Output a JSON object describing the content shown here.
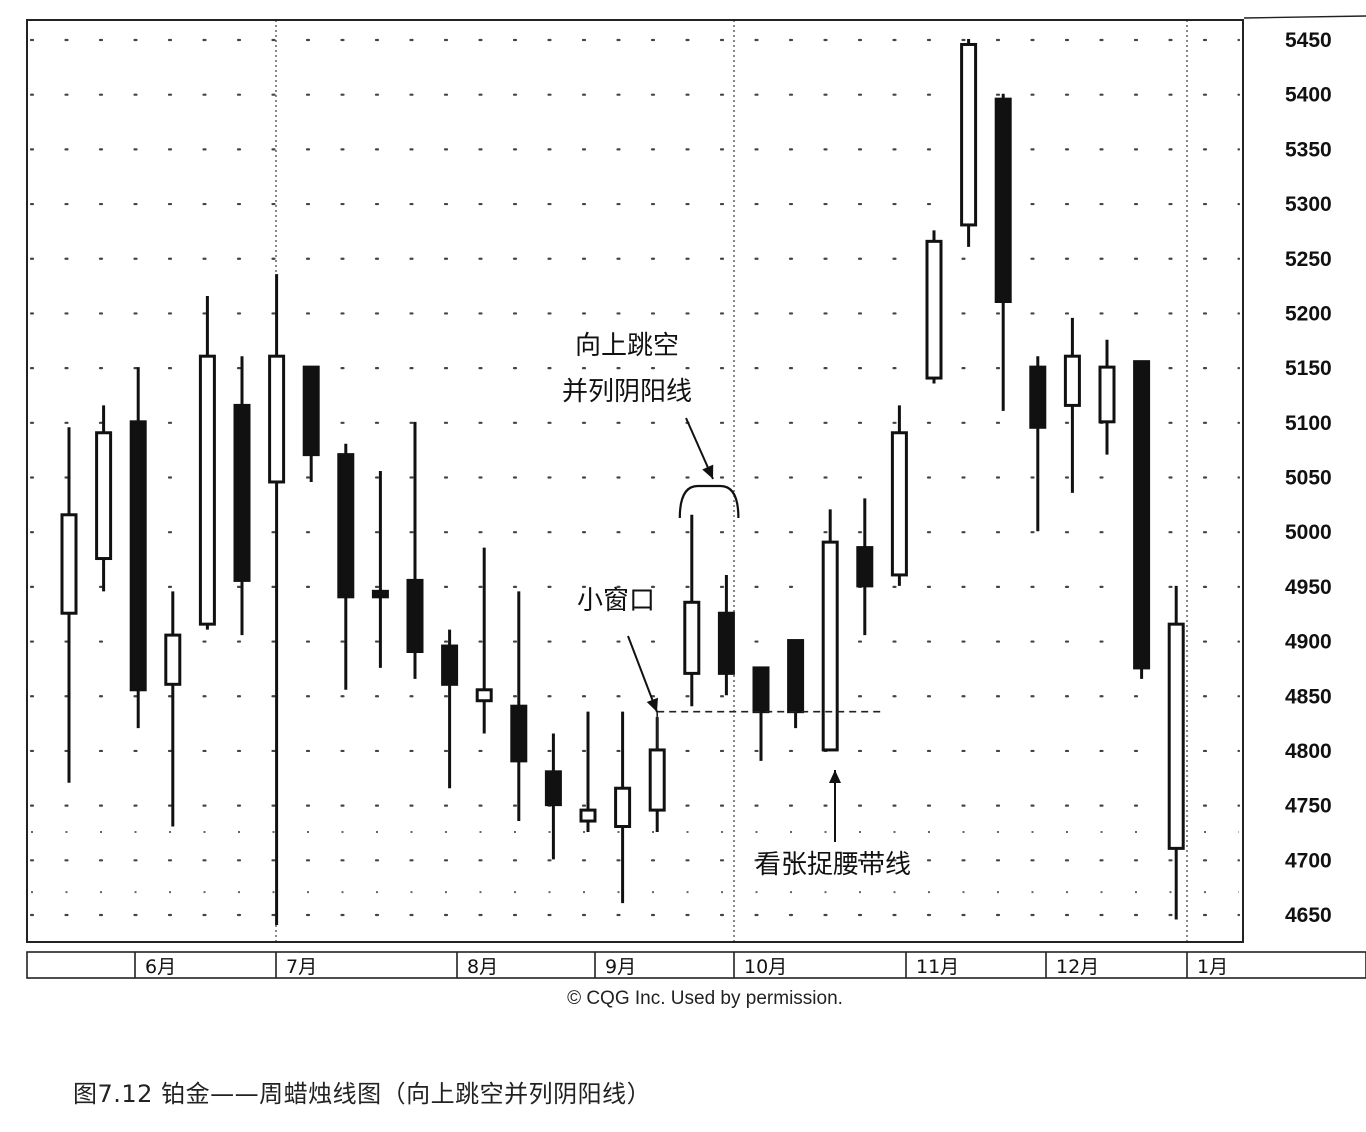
{
  "chart_data": {
    "type": "candlestick",
    "title": "",
    "price_scale": {
      "min": 4625,
      "max": 5475,
      "ticks": [
        4650,
        4700,
        4750,
        4800,
        4850,
        4900,
        4950,
        5000,
        5050,
        5100,
        5150,
        5200,
        5250,
        5300,
        5350,
        5400,
        5450
      ],
      "tick_labels": [
        "4650",
        "4700",
        "4750",
        "4800",
        "4850",
        "4900",
        "4950",
        "5000",
        "5050",
        "5100",
        "5150",
        "5200",
        "5250",
        "5300",
        "5350",
        "5400",
        "5450"
      ]
    },
    "month_labels": [
      "6月",
      "7月",
      "8月",
      "9月",
      "10月",
      "11月",
      "12月",
      "1月"
    ],
    "month_start_index": [
      2.0,
      6.1,
      11.2,
      15.2,
      19.1,
      24.1,
      28.2,
      32.2
    ],
    "grid": "dotted",
    "candles": [
      {
        "o": 4925,
        "h": 5095,
        "l": 4770,
        "c": 5015
      },
      {
        "o": 4975,
        "h": 5115,
        "l": 4945,
        "c": 5090
      },
      {
        "o": 5100,
        "h": 5150,
        "l": 4820,
        "c": 4855
      },
      {
        "o": 4860,
        "h": 4945,
        "l": 4730,
        "c": 4905
      },
      {
        "o": 4915,
        "h": 5215,
        "l": 4910,
        "c": 5160
      },
      {
        "o": 5115,
        "h": 5160,
        "l": 4905,
        "c": 4955
      },
      {
        "o": 5045,
        "h": 5235,
        "l": 4640,
        "c": 5160
      },
      {
        "o": 5150,
        "h": 5150,
        "l": 5045,
        "c": 5070
      },
      {
        "o": 5070,
        "h": 5080,
        "l": 4855,
        "c": 4940
      },
      {
        "o": 4945,
        "h": 5055,
        "l": 4875,
        "c": 4940
      },
      {
        "o": 4955,
        "h": 5100,
        "l": 4865,
        "c": 4890
      },
      {
        "o": 4895,
        "h": 4910,
        "l": 4765,
        "c": 4860
      },
      {
        "o": 4845,
        "h": 4985,
        "l": 4815,
        "c": 4855
      },
      {
        "o": 4840,
        "h": 4945,
        "l": 4735,
        "c": 4790
      },
      {
        "o": 4780,
        "h": 4815,
        "l": 4700,
        "c": 4750
      },
      {
        "o": 4735,
        "h": 4835,
        "l": 4725,
        "c": 4745
      },
      {
        "o": 4730,
        "h": 4835,
        "l": 4660,
        "c": 4765
      },
      {
        "o": 4745,
        "h": 4830,
        "l": 4725,
        "c": 4800
      },
      {
        "o": 4870,
        "h": 5015,
        "l": 4840,
        "c": 4935
      },
      {
        "o": 4925,
        "h": 4960,
        "l": 4850,
        "c": 4870
      },
      {
        "o": 4875,
        "h": 4875,
        "l": 4790,
        "c": 4835
      },
      {
        "o": 4900,
        "h": 4900,
        "l": 4820,
        "c": 4835
      },
      {
        "o": 4800,
        "h": 5020,
        "l": 4800,
        "c": 4990
      },
      {
        "o": 4985,
        "h": 5030,
        "l": 4905,
        "c": 4950
      },
      {
        "o": 4960,
        "h": 5115,
        "l": 4950,
        "c": 5090
      },
      {
        "o": 5140,
        "h": 5275,
        "l": 5135,
        "c": 5265
      },
      {
        "o": 5280,
        "h": 5450,
        "l": 5260,
        "c": 5445
      },
      {
        "o": 5395,
        "h": 5400,
        "l": 5110,
        "c": 5210
      },
      {
        "o": 5150,
        "h": 5160,
        "l": 5000,
        "c": 5095
      },
      {
        "o": 5115,
        "h": 5195,
        "l": 5035,
        "c": 5160
      },
      {
        "o": 5100,
        "h": 5175,
        "l": 5070,
        "c": 5150
      },
      {
        "o": 5155,
        "h": 5155,
        "l": 4865,
        "c": 4875
      },
      {
        "o": 4710,
        "h": 4950,
        "l": 4645,
        "c": 4915
      }
    ],
    "gap_line": {
      "value": 4835,
      "from_index": 17,
      "to_index": 23
    },
    "annotations": [
      {
        "text_lines": [
          "向上跳空",
          "并列阴阳线"
        ],
        "target": "bracket",
        "target_index_from": 18,
        "target_index_to": 19
      },
      {
        "text_lines": [
          "小窗口"
        ],
        "target_index": 17
      },
      {
        "text_lines": [
          "看张捉腰带线"
        ],
        "target_index": 22
      }
    ],
    "credit": "© CQG Inc. Used by permission."
  },
  "caption": "图7.12 铂金——周蜡烛线图（向上跳空并列阴阳线）"
}
